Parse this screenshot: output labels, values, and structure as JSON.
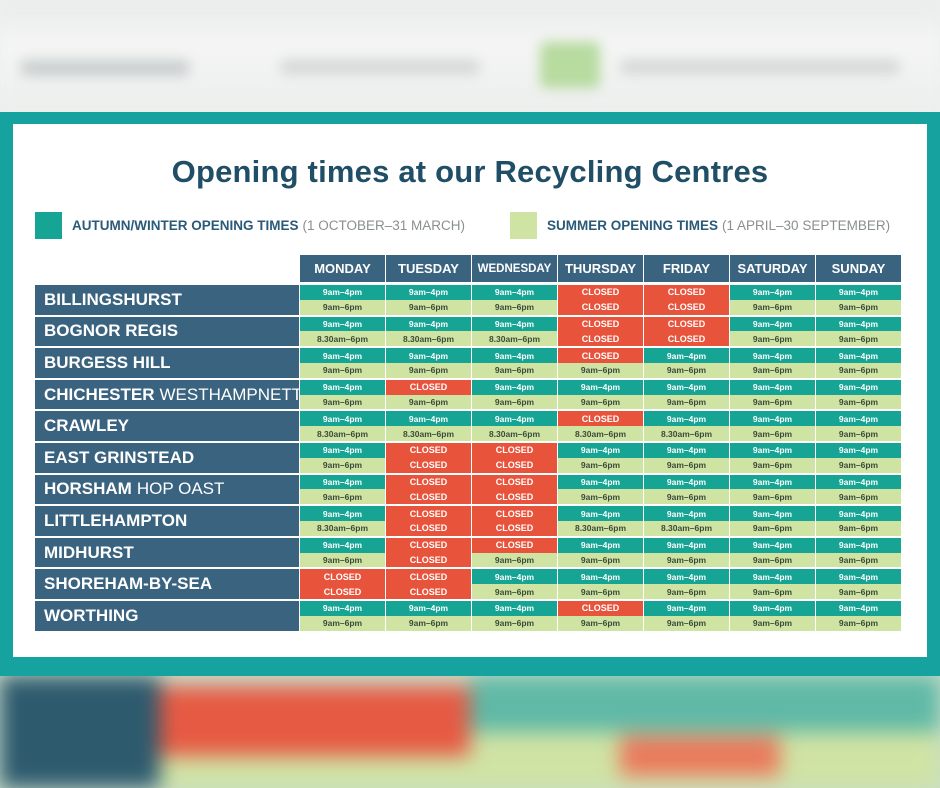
{
  "title": "Opening times at our Recycling Centres",
  "legend": {
    "autumn_winter": {
      "label": "AUTUMN/WINTER OPENING TIMES",
      "dates": "(1 OCTOBER–31 MARCH)",
      "color": "#16a594"
    },
    "summer": {
      "label": "SUMMER OPENING TIMES",
      "dates": "(1 APRIL–30 SEPTEMBER)",
      "color": "#cfe3a2"
    }
  },
  "colors": {
    "closed": "#e8533c",
    "header": "#3a6380",
    "frame": "#16a3a0"
  },
  "days": [
    "MONDAY",
    "TUESDAY",
    "WEDNESDAY",
    "THURSDAY",
    "FRIDAY",
    "SATURDAY",
    "SUNDAY"
  ],
  "centres": [
    {
      "name": "BILLINGSHURST",
      "suffix": "",
      "aw": [
        "9am–4pm",
        "9am–4pm",
        "9am–4pm",
        "CLOSED",
        "CLOSED",
        "9am–4pm",
        "9am–4pm"
      ],
      "su": [
        "9am–6pm",
        "9am–6pm",
        "9am–6pm",
        "CLOSED",
        "CLOSED",
        "9am–6pm",
        "9am–6pm"
      ]
    },
    {
      "name": "BOGNOR REGIS",
      "suffix": "",
      "aw": [
        "9am–4pm",
        "9am–4pm",
        "9am–4pm",
        "CLOSED",
        "CLOSED",
        "9am–4pm",
        "9am–4pm"
      ],
      "su": [
        "8.30am–6pm",
        "8.30am–6pm",
        "8.30am–6pm",
        "CLOSED",
        "CLOSED",
        "9am–6pm",
        "9am–6pm"
      ]
    },
    {
      "name": "BURGESS HILL",
      "suffix": "",
      "aw": [
        "9am–4pm",
        "9am–4pm",
        "9am–4pm",
        "CLOSED",
        "9am–4pm",
        "9am–4pm",
        "9am–4pm"
      ],
      "su": [
        "9am–6pm",
        "9am–6pm",
        "9am–6pm",
        "9am–6pm",
        "9am–6pm",
        "9am–6pm",
        "9am–6pm"
      ]
    },
    {
      "name": "CHICHESTER",
      "suffix": "WESTHAMPNETT",
      "aw": [
        "9am–4pm",
        "CLOSED",
        "9am–4pm",
        "9am–4pm",
        "9am–4pm",
        "9am–4pm",
        "9am–4pm"
      ],
      "su": [
        "9am–6pm",
        "9am–6pm",
        "9am–6pm",
        "9am–6pm",
        "9am–6pm",
        "9am–6pm",
        "9am–6pm"
      ]
    },
    {
      "name": "CRAWLEY",
      "suffix": "",
      "aw": [
        "9am–4pm",
        "9am–4pm",
        "9am–4pm",
        "CLOSED",
        "9am–4pm",
        "9am–4pm",
        "9am–4pm"
      ],
      "su": [
        "8.30am–6pm",
        "8.30am–6pm",
        "8.30am–6pm",
        "8.30am–6pm",
        "8.30am–6pm",
        "9am–6pm",
        "9am–6pm"
      ]
    },
    {
      "name": "EAST GRINSTEAD",
      "suffix": "",
      "aw": [
        "9am–4pm",
        "CLOSED",
        "CLOSED",
        "9am–4pm",
        "9am–4pm",
        "9am–4pm",
        "9am–4pm"
      ],
      "su": [
        "9am–6pm",
        "CLOSED",
        "CLOSED",
        "9am–6pm",
        "9am–6pm",
        "9am–6pm",
        "9am–6pm"
      ]
    },
    {
      "name": "HORSHAM",
      "suffix": "HOP OAST",
      "aw": [
        "9am–4pm",
        "CLOSED",
        "CLOSED",
        "9am–4pm",
        "9am–4pm",
        "9am–4pm",
        "9am–4pm"
      ],
      "su": [
        "9am–6pm",
        "CLOSED",
        "CLOSED",
        "9am–6pm",
        "9am–6pm",
        "9am–6pm",
        "9am–6pm"
      ]
    },
    {
      "name": "LITTLEHAMPTON",
      "suffix": "",
      "aw": [
        "9am–4pm",
        "CLOSED",
        "CLOSED",
        "9am–4pm",
        "9am–4pm",
        "9am–4pm",
        "9am–4pm"
      ],
      "su": [
        "8.30am–6pm",
        "CLOSED",
        "CLOSED",
        "8.30am–6pm",
        "8.30am–6pm",
        "9am–6pm",
        "9am–6pm"
      ]
    },
    {
      "name": "MIDHURST",
      "suffix": "",
      "aw": [
        "9am–4pm",
        "CLOSED",
        "CLOSED",
        "9am–4pm",
        "9am–4pm",
        "9am–4pm",
        "9am–4pm"
      ],
      "su": [
        "9am–6pm",
        "CLOSED",
        "9am–6pm",
        "9am–6pm",
        "9am–6pm",
        "9am–6pm",
        "9am–6pm"
      ]
    },
    {
      "name": "SHOREHAM-BY-SEA",
      "suffix": "",
      "aw": [
        "CLOSED",
        "CLOSED",
        "9am–4pm",
        "9am–4pm",
        "9am–4pm",
        "9am–4pm",
        "9am–4pm"
      ],
      "su": [
        "CLOSED",
        "CLOSED",
        "9am–6pm",
        "9am–6pm",
        "9am–6pm",
        "9am–6pm",
        "9am–6pm"
      ]
    },
    {
      "name": "WORTHING",
      "suffix": "",
      "aw": [
        "9am–4pm",
        "9am–4pm",
        "9am–4pm",
        "CLOSED",
        "9am–4pm",
        "9am–4pm",
        "9am–4pm"
      ],
      "su": [
        "9am–6pm",
        "9am–6pm",
        "9am–6pm",
        "9am–6pm",
        "9am–6pm",
        "9am–6pm",
        "9am–6pm"
      ]
    }
  ]
}
